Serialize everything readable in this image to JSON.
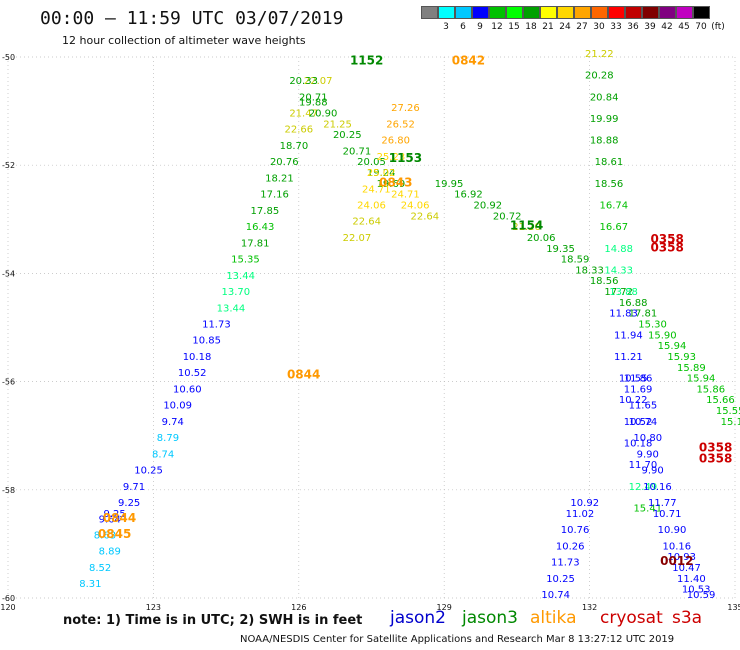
{
  "header": {
    "title": "00:00 – 11:59 UTC 03/07/2019",
    "subtitle": "12 hour collection of altimeter wave heights"
  },
  "color_scale": {
    "units_label": "(ft)",
    "bins": [
      {
        "label": "",
        "color": "#808080"
      },
      {
        "label": "3",
        "color": "#00ffff"
      },
      {
        "label": "6",
        "color": "#00c8ff"
      },
      {
        "label": "9",
        "color": "#0000ff"
      },
      {
        "label": "12",
        "color": "#00c000"
      },
      {
        "label": "15",
        "color": "#00ff00"
      },
      {
        "label": "18",
        "color": "#00a000"
      },
      {
        "label": "21",
        "color": "#ffff00"
      },
      {
        "label": "24",
        "color": "#ffd700"
      },
      {
        "label": "27",
        "color": "#ffa500"
      },
      {
        "label": "30",
        "color": "#ff6600"
      },
      {
        "label": "33",
        "color": "#ff0000"
      },
      {
        "label": "36",
        "color": "#c00000"
      },
      {
        "label": "39",
        "color": "#800000"
      },
      {
        "label": "42",
        "color": "#800080"
      },
      {
        "label": "45",
        "color": "#c000c0"
      },
      {
        "label": "70",
        "color": "#000000"
      }
    ]
  },
  "note": "note: 1) Time is in UTC; 2) SWH is in feet",
  "satellites": [
    {
      "name": "jason2",
      "color": "#0000cc"
    },
    {
      "name": "jason3",
      "color": "#008800"
    },
    {
      "name": "altika",
      "color": "#ff9900"
    },
    {
      "name": "cryosat",
      "color": "#cc0000"
    },
    {
      "name": "s3a",
      "color": "#cc0000"
    }
  ],
  "footer": "NOAA/NESDIS Center for Satellite Applications and Research    Mar  8 13:27:12 UTC 2019",
  "chart_data": {
    "type": "scatter",
    "title": "00:00 – 11:59 UTC 03/07/2019",
    "xlabel": "",
    "ylabel": "",
    "xlim": [
      120,
      135
    ],
    "ylim": [
      -60,
      -50
    ],
    "x_ticks": [
      "120",
      "123",
      "126",
      "129",
      "132",
      "135"
    ],
    "y_ticks": [
      "-50",
      "-52",
      "-54",
      "-56",
      "-58",
      "-60"
    ],
    "grid": true,
    "labels": [
      {
        "x": 121.7,
        "y": -59.8,
        "text": "8.31",
        "color": "#00c8ff"
      },
      {
        "x": 121.9,
        "y": -59.5,
        "text": "8.52",
        "color": "#00c8ff"
      },
      {
        "x": 122.1,
        "y": -59.2,
        "text": "8.89",
        "color": "#00c8ff"
      },
      {
        "x": 122.0,
        "y": -58.9,
        "text": "8.63",
        "color": "#00c8ff"
      },
      {
        "x": 122.1,
        "y": -58.6,
        "text": "9.64",
        "color": "#0000ff"
      },
      {
        "x": 122.2,
        "y": -58.5,
        "text": "9.25",
        "color": "#0000ff"
      },
      {
        "x": 122.5,
        "y": -58.3,
        "text": "9.25",
        "color": "#0000ff"
      },
      {
        "x": 122.6,
        "y": -58.0,
        "text": "9.71",
        "color": "#0000ff"
      },
      {
        "x": 122.9,
        "y": -57.7,
        "text": "10.25",
        "color": "#0000ff"
      },
      {
        "x": 123.2,
        "y": -57.4,
        "text": "8.74",
        "color": "#00c8ff"
      },
      {
        "x": 123.3,
        "y": -57.1,
        "text": "8.79",
        "color": "#00c8ff"
      },
      {
        "x": 123.4,
        "y": -56.8,
        "text": "9.74",
        "color": "#0000ff"
      },
      {
        "x": 123.5,
        "y": -56.5,
        "text": "10.09",
        "color": "#0000ff"
      },
      {
        "x": 123.7,
        "y": -56.2,
        "text": "10.60",
        "color": "#0000ff"
      },
      {
        "x": 123.8,
        "y": -55.9,
        "text": "10.52",
        "color": "#0000ff"
      },
      {
        "x": 123.9,
        "y": -55.6,
        "text": "10.18",
        "color": "#0000ff"
      },
      {
        "x": 124.1,
        "y": -55.3,
        "text": "10.85",
        "color": "#0000ff"
      },
      {
        "x": 124.3,
        "y": -55.0,
        "text": "11.73",
        "color": "#0000ff"
      },
      {
        "x": 124.6,
        "y": -54.7,
        "text": "13.44",
        "color": "#00ff80"
      },
      {
        "x": 124.7,
        "y": -54.4,
        "text": "13.70",
        "color": "#00ff80"
      },
      {
        "x": 124.8,
        "y": -54.1,
        "text": "13.44",
        "color": "#00ff80"
      },
      {
        "x": 124.9,
        "y": -53.8,
        "text": "15.35",
        "color": "#00c000"
      },
      {
        "x": 125.1,
        "y": -53.5,
        "text": "17.81",
        "color": "#00a000"
      },
      {
        "x": 125.2,
        "y": -53.2,
        "text": "16.43",
        "color": "#00c000"
      },
      {
        "x": 125.3,
        "y": -52.9,
        "text": "17.85",
        "color": "#00a000"
      },
      {
        "x": 125.5,
        "y": -52.6,
        "text": "17.16",
        "color": "#00a000"
      },
      {
        "x": 125.6,
        "y": -52.3,
        "text": "18.21",
        "color": "#00a000"
      },
      {
        "x": 125.7,
        "y": -52.0,
        "text": "20.76",
        "color": "#00a000"
      },
      {
        "x": 125.9,
        "y": -51.7,
        "text": "18.70",
        "color": "#00a000"
      },
      {
        "x": 126.0,
        "y": -51.4,
        "text": "22.66",
        "color": "#cccc00"
      },
      {
        "x": 126.1,
        "y": -51.1,
        "text": "21.47",
        "color": "#cccc00"
      },
      {
        "x": 126.3,
        "y": -50.8,
        "text": "20.71",
        "color": "#00a000"
      },
      {
        "x": 126.4,
        "y": -50.5,
        "text": "22.07",
        "color": "#cccc00"
      },
      {
        "x": 129.1,
        "y": -52.4,
        "text": "19.95",
        "color": "#00a000"
      },
      {
        "x": 129.5,
        "y": -52.6,
        "text": "16.92",
        "color": "#00a000"
      },
      {
        "x": 129.9,
        "y": -52.8,
        "text": "20.92",
        "color": "#00a000"
      },
      {
        "x": 130.3,
        "y": -53.0,
        "text": "20.72",
        "color": "#00a000"
      },
      {
        "x": 130.7,
        "y": -53.2,
        "text": "21.20",
        "color": "#cccc00"
      },
      {
        "x": 131.0,
        "y": -53.4,
        "text": "20.06",
        "color": "#00a000"
      },
      {
        "x": 131.4,
        "y": -53.6,
        "text": "19.35",
        "color": "#00a000"
      },
      {
        "x": 131.7,
        "y": -53.8,
        "text": "18.59",
        "color": "#00a000"
      },
      {
        "x": 132.0,
        "y": -54.0,
        "text": "18.33",
        "color": "#00a000"
      },
      {
        "x": 132.3,
        "y": -54.2,
        "text": "18.56",
        "color": "#00a000"
      },
      {
        "x": 132.6,
        "y": -54.4,
        "text": "17.72",
        "color": "#00a000"
      },
      {
        "x": 132.9,
        "y": -54.6,
        "text": "16.88",
        "color": "#00a000"
      },
      {
        "x": 133.1,
        "y": -54.8,
        "text": "17.81",
        "color": "#00a000"
      },
      {
        "x": 133.3,
        "y": -55.0,
        "text": "15.30",
        "color": "#00c000"
      },
      {
        "x": 133.5,
        "y": -55.2,
        "text": "15.90",
        "color": "#00c000"
      },
      {
        "x": 133.7,
        "y": -55.4,
        "text": "15.94",
        "color": "#00c000"
      },
      {
        "x": 133.9,
        "y": -55.6,
        "text": "15.93",
        "color": "#00c000"
      },
      {
        "x": 134.1,
        "y": -55.8,
        "text": "15.89",
        "color": "#00c000"
      },
      {
        "x": 134.3,
        "y": -56.0,
        "text": "15.94",
        "color": "#00c000"
      },
      {
        "x": 134.5,
        "y": -56.2,
        "text": "15.86",
        "color": "#00c000"
      },
      {
        "x": 134.7,
        "y": -56.4,
        "text": "15.66",
        "color": "#00c000"
      },
      {
        "x": 134.9,
        "y": -56.6,
        "text": "15.55",
        "color": "#00c000"
      },
      {
        "x": 135.0,
        "y": -56.8,
        "text": "15.15",
        "color": "#00c000"
      },
      {
        "x": 126.1,
        "y": -50.5,
        "text": "20.33",
        "color": "#00a000"
      },
      {
        "x": 126.3,
        "y": -50.9,
        "text": "19.88",
        "color": "#00a000"
      },
      {
        "x": 126.5,
        "y": -51.1,
        "text": "20.90",
        "color": "#00a000"
      },
      {
        "x": 126.8,
        "y": -51.3,
        "text": "21.25",
        "color": "#cccc00"
      },
      {
        "x": 127.0,
        "y": -51.5,
        "text": "20.25",
        "color": "#00a000"
      },
      {
        "x": 127.2,
        "y": -51.8,
        "text": "20.71",
        "color": "#00a000"
      },
      {
        "x": 127.5,
        "y": -52.0,
        "text": "20.05",
        "color": "#00a000"
      },
      {
        "x": 127.7,
        "y": -52.2,
        "text": "19.24",
        "color": "#00a000"
      },
      {
        "x": 127.9,
        "y": -52.4,
        "text": "19.69",
        "color": "#00a000"
      },
      {
        "x": 128.2,
        "y": -52.6,
        "text": "24.71",
        "color": "#ffd700"
      },
      {
        "x": 128.4,
        "y": -52.8,
        "text": "24.06",
        "color": "#ffd700"
      },
      {
        "x": 128.6,
        "y": -53.0,
        "text": "22.64",
        "color": "#cccc00"
      },
      {
        "x": 128.2,
        "y": -51.0,
        "text": "27.26",
        "color": "#ffa500"
      },
      {
        "x": 128.1,
        "y": -51.3,
        "text": "26.52",
        "color": "#ffa500"
      },
      {
        "x": 128.0,
        "y": -51.6,
        "text": "26.80",
        "color": "#ffa500"
      },
      {
        "x": 127.9,
        "y": -51.9,
        "text": "25.23",
        "color": "#ffd700"
      },
      {
        "x": 127.7,
        "y": -52.2,
        "text": "25.02",
        "color": "#ffd700"
      },
      {
        "x": 127.6,
        "y": -52.5,
        "text": "24.71",
        "color": "#ffd700"
      },
      {
        "x": 127.5,
        "y": -52.8,
        "text": "24.06",
        "color": "#ffd700"
      },
      {
        "x": 127.4,
        "y": -53.1,
        "text": "22.64",
        "color": "#cccc00"
      },
      {
        "x": 127.2,
        "y": -53.4,
        "text": "22.07",
        "color": "#cccc00"
      },
      {
        "x": 132.2,
        "y": -50.0,
        "text": "21.22",
        "color": "#cccc00"
      },
      {
        "x": 132.2,
        "y": -50.4,
        "text": "20.28",
        "color": "#00a000"
      },
      {
        "x": 132.3,
        "y": -50.8,
        "text": "20.84",
        "color": "#00a000"
      },
      {
        "x": 132.3,
        "y": -51.2,
        "text": "19.99",
        "color": "#00a000"
      },
      {
        "x": 132.3,
        "y": -51.6,
        "text": "18.88",
        "color": "#00a000"
      },
      {
        "x": 132.4,
        "y": -52.0,
        "text": "18.61",
        "color": "#00a000"
      },
      {
        "x": 132.4,
        "y": -52.4,
        "text": "18.56",
        "color": "#00a000"
      },
      {
        "x": 132.5,
        "y": -52.8,
        "text": "16.74",
        "color": "#00c000"
      },
      {
        "x": 132.5,
        "y": -53.2,
        "text": "16.67",
        "color": "#00c000"
      },
      {
        "x": 132.6,
        "y": -53.6,
        "text": "14.88",
        "color": "#00ff80"
      },
      {
        "x": 132.6,
        "y": -54.0,
        "text": "14.33",
        "color": "#00ff80"
      },
      {
        "x": 132.7,
        "y": -54.4,
        "text": "13.88",
        "color": "#00ff80"
      },
      {
        "x": 132.7,
        "y": -54.8,
        "text": "11.83",
        "color": "#0000ff"
      },
      {
        "x": 132.8,
        "y": -55.2,
        "text": "11.94",
        "color": "#0000ff"
      },
      {
        "x": 132.8,
        "y": -55.6,
        "text": "11.21",
        "color": "#0000ff"
      },
      {
        "x": 132.9,
        "y": -56.0,
        "text": "10.55",
        "color": "#0000ff"
      },
      {
        "x": 132.9,
        "y": -56.4,
        "text": "10.22",
        "color": "#0000ff"
      },
      {
        "x": 133.0,
        "y": -56.8,
        "text": "10.52",
        "color": "#0000ff"
      },
      {
        "x": 133.0,
        "y": -57.2,
        "text": "10.18",
        "color": "#0000ff"
      },
      {
        "x": 133.1,
        "y": -57.6,
        "text": "11.70",
        "color": "#0000ff"
      },
      {
        "x": 133.1,
        "y": -58.0,
        "text": "12.49",
        "color": "#00ff80"
      },
      {
        "x": 133.2,
        "y": -58.4,
        "text": "15.41",
        "color": "#00c000"
      },
      {
        "x": 133.0,
        "y": -56.0,
        "text": "11.86",
        "color": "#0000ff"
      },
      {
        "x": 133.0,
        "y": -56.2,
        "text": "11.69",
        "color": "#0000ff"
      },
      {
        "x": 133.1,
        "y": -56.5,
        "text": "11.65",
        "color": "#0000ff"
      },
      {
        "x": 133.1,
        "y": -56.8,
        "text": "10.74",
        "color": "#0000ff"
      },
      {
        "x": 133.2,
        "y": -57.1,
        "text": "10.80",
        "color": "#0000ff"
      },
      {
        "x": 133.2,
        "y": -57.4,
        "text": "9.90",
        "color": "#0000ff"
      },
      {
        "x": 133.3,
        "y": -57.7,
        "text": "9.90",
        "color": "#0000ff"
      },
      {
        "x": 133.4,
        "y": -58.0,
        "text": "10.16",
        "color": "#0000ff"
      },
      {
        "x": 133.5,
        "y": -58.3,
        "text": "11.77",
        "color": "#0000ff"
      },
      {
        "x": 133.6,
        "y": -58.5,
        "text": "10.71",
        "color": "#0000ff"
      },
      {
        "x": 133.7,
        "y": -58.8,
        "text": "10.90",
        "color": "#0000ff"
      },
      {
        "x": 133.8,
        "y": -59.1,
        "text": "10.16",
        "color": "#0000ff"
      },
      {
        "x": 133.9,
        "y": -59.3,
        "text": "10.93",
        "color": "#0000ff"
      },
      {
        "x": 134.0,
        "y": -59.5,
        "text": "10.47",
        "color": "#0000ff"
      },
      {
        "x": 134.1,
        "y": -59.7,
        "text": "11.40",
        "color": "#0000ff"
      },
      {
        "x": 134.2,
        "y": -59.9,
        "text": "10.53",
        "color": "#0000ff"
      },
      {
        "x": 134.3,
        "y": -60.0,
        "text": "10.59",
        "color": "#0000ff"
      },
      {
        "x": 131.9,
        "y": -58.3,
        "text": "10.92",
        "color": "#0000ff"
      },
      {
        "x": 131.8,
        "y": -58.5,
        "text": "11.02",
        "color": "#0000ff"
      },
      {
        "x": 131.7,
        "y": -58.8,
        "text": "10.76",
        "color": "#0000ff"
      },
      {
        "x": 131.6,
        "y": -59.1,
        "text": "10.26",
        "color": "#0000ff"
      },
      {
        "x": 131.5,
        "y": -59.4,
        "text": "11.73",
        "color": "#0000ff"
      },
      {
        "x": 131.4,
        "y": -59.7,
        "text": "10.25",
        "color": "#0000ff"
      },
      {
        "x": 131.3,
        "y": -60.0,
        "text": "10.74",
        "color": "#0000ff"
      }
    ],
    "track_markers": [
      {
        "x": 127.4,
        "y": -50.05,
        "text": "1152",
        "color": "#008800"
      },
      {
        "x": 128.2,
        "y": -51.85,
        "text": "1153",
        "color": "#008800"
      },
      {
        "x": 130.7,
        "y": -53.1,
        "text": "1154",
        "color": "#008800"
      },
      {
        "x": 129.5,
        "y": -50.05,
        "text": "0842",
        "color": "#ff9900"
      },
      {
        "x": 128.0,
        "y": -52.3,
        "text": "0843",
        "color": "#ff9900"
      },
      {
        "x": 126.1,
        "y": -55.85,
        "text": "0844",
        "color": "#ff9900"
      },
      {
        "x": 122.3,
        "y": -58.5,
        "text": "0844",
        "color": "#ff9900"
      },
      {
        "x": 122.2,
        "y": -58.8,
        "text": "0845",
        "color": "#ff9900"
      },
      {
        "x": 133.6,
        "y": -53.35,
        "text": "0358",
        "color": "#cc0000"
      },
      {
        "x": 133.6,
        "y": -53.5,
        "text": "0358",
        "color": "#cc0000"
      },
      {
        "x": 134.6,
        "y": -57.2,
        "text": "0358",
        "color": "#cc0000"
      },
      {
        "x": 134.6,
        "y": -57.4,
        "text": "0358",
        "color": "#cc0000"
      },
      {
        "x": 133.8,
        "y": -59.3,
        "text": "0012",
        "color": "#880000"
      }
    ]
  }
}
